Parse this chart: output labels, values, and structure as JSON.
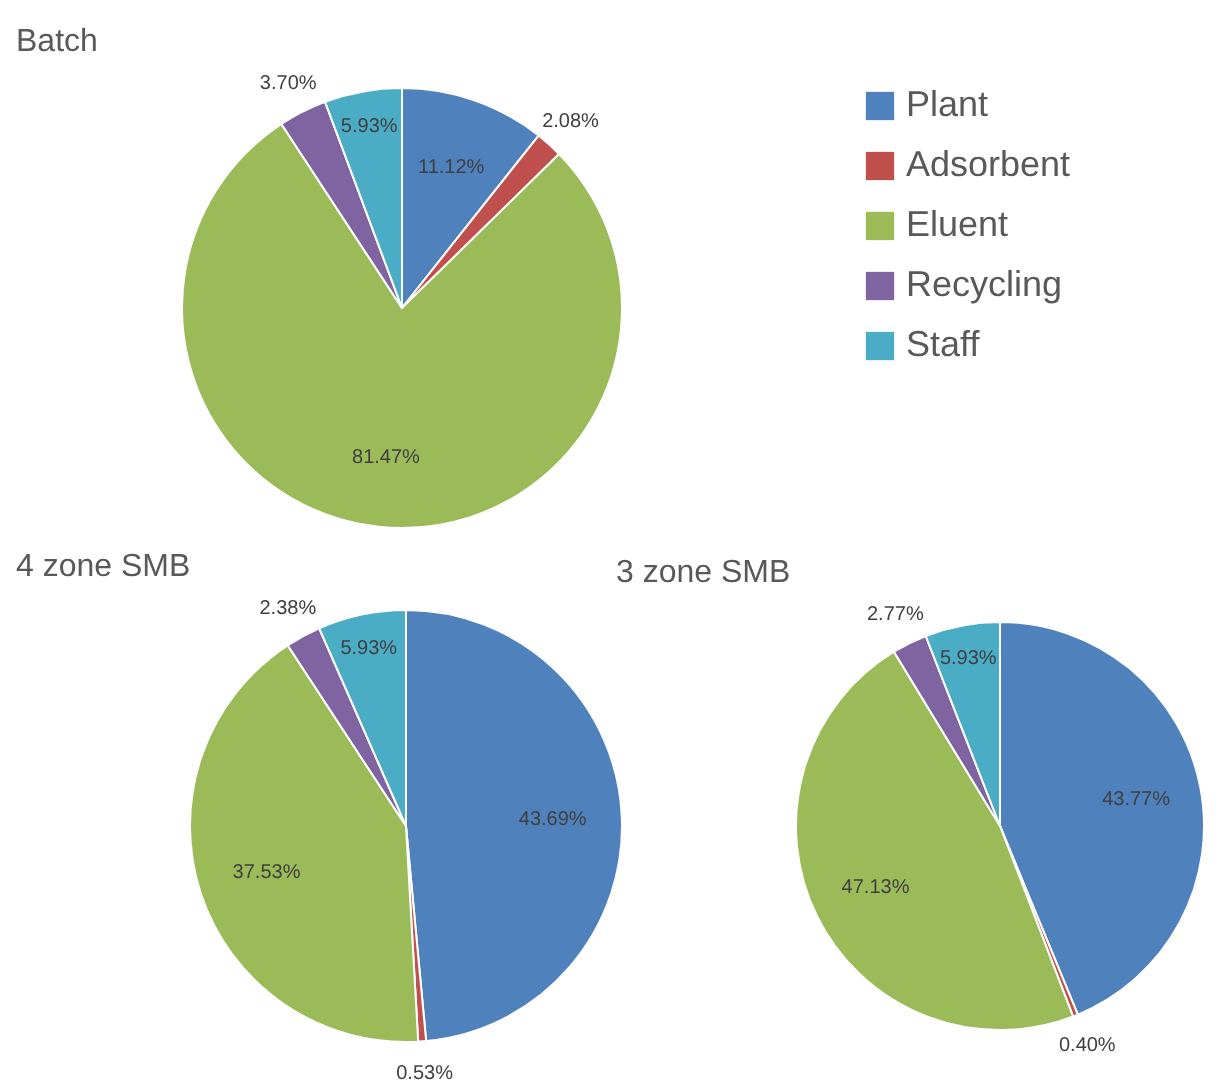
{
  "chart_data": [
    {
      "type": "pie",
      "title": "Batch",
      "categories": [
        "Plant",
        "Adsorbent",
        "Eluent",
        "Recycling",
        "Staff"
      ],
      "values": [
        11.12,
        2.08,
        81.47,
        3.7,
        5.93
      ],
      "value_labels": [
        "11.12%",
        "2.08%",
        "81.47%",
        "3.70%",
        "5.93%"
      ],
      "colors": [
        "#4f81bd",
        "#c0504d",
        "#9bbb59",
        "#8064a2",
        "#4bacc6"
      ],
      "legend": "right"
    },
    {
      "type": "pie",
      "title": "4 zone SMB",
      "categories": [
        null,
        null,
        null,
        null,
        null
      ],
      "values": [
        43.69,
        0.53,
        37.53,
        2.38,
        5.93
      ],
      "value_labels": [
        "43.69%",
        "0.53%",
        "37.53%",
        "2.38%",
        "5.93%"
      ],
      "colors": [
        "#4f81bd",
        "#c0504d",
        "#9bbb59",
        "#8064a2",
        "#4bacc6"
      ]
    },
    {
      "type": "pie",
      "title": "3 zone SMB",
      "categories": [
        null,
        null,
        null,
        null,
        null
      ],
      "values": [
        43.77,
        0.4,
        47.13,
        2.77,
        5.93
      ],
      "value_labels": [
        "43.77%",
        "0.40%",
        "47.13%",
        "2.77%",
        "5.93%"
      ],
      "colors": [
        "#4f81bd",
        "#c0504d",
        "#9bbb59",
        "#8064a2",
        "#4bacc6"
      ]
    }
  ]
}
